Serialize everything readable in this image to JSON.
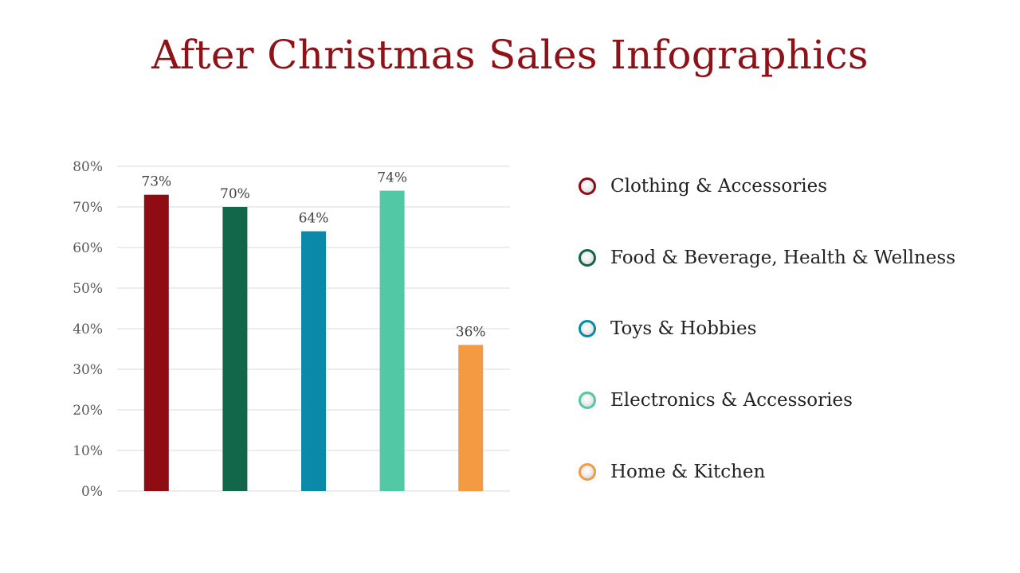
{
  "title": "After Christmas Sales Infographics",
  "chart_data": {
    "type": "bar",
    "categories": [
      "Clothing & Accessories",
      "Food & Beverage, Health & Wellness",
      "Toys & Hobbies",
      "Electronics & Accessories",
      "Home & Kitchen"
    ],
    "values": [
      73,
      70,
      64,
      74,
      36
    ],
    "data_labels": [
      "73%",
      "70%",
      "64%",
      "74%",
      "36%"
    ],
    "colors": [
      "#8e0c12",
      "#12664a",
      "#0a8aa8",
      "#52c9a4",
      "#f39a42"
    ],
    "ylim": [
      0,
      80
    ],
    "yticks": [
      0,
      10,
      20,
      30,
      40,
      50,
      60,
      70,
      80
    ],
    "ytick_labels": [
      "0%",
      "10%",
      "20%",
      "30%",
      "40%",
      "50%",
      "60%",
      "70%",
      "80%"
    ],
    "grid": true,
    "legend_position": "right",
    "xlabel": "",
    "ylabel": ""
  },
  "legend": {
    "items": [
      {
        "label": "Clothing & Accessories",
        "color": "#8e0c12"
      },
      {
        "label": "Food & Beverage, Health & Wellness",
        "color": "#12664a"
      },
      {
        "label": "Toys & Hobbies",
        "color": "#0a8aa8"
      },
      {
        "label": "Electronics & Accessories",
        "color": "#52c9a4"
      },
      {
        "label": "Home & Kitchen",
        "color": "#f39a42"
      }
    ]
  }
}
